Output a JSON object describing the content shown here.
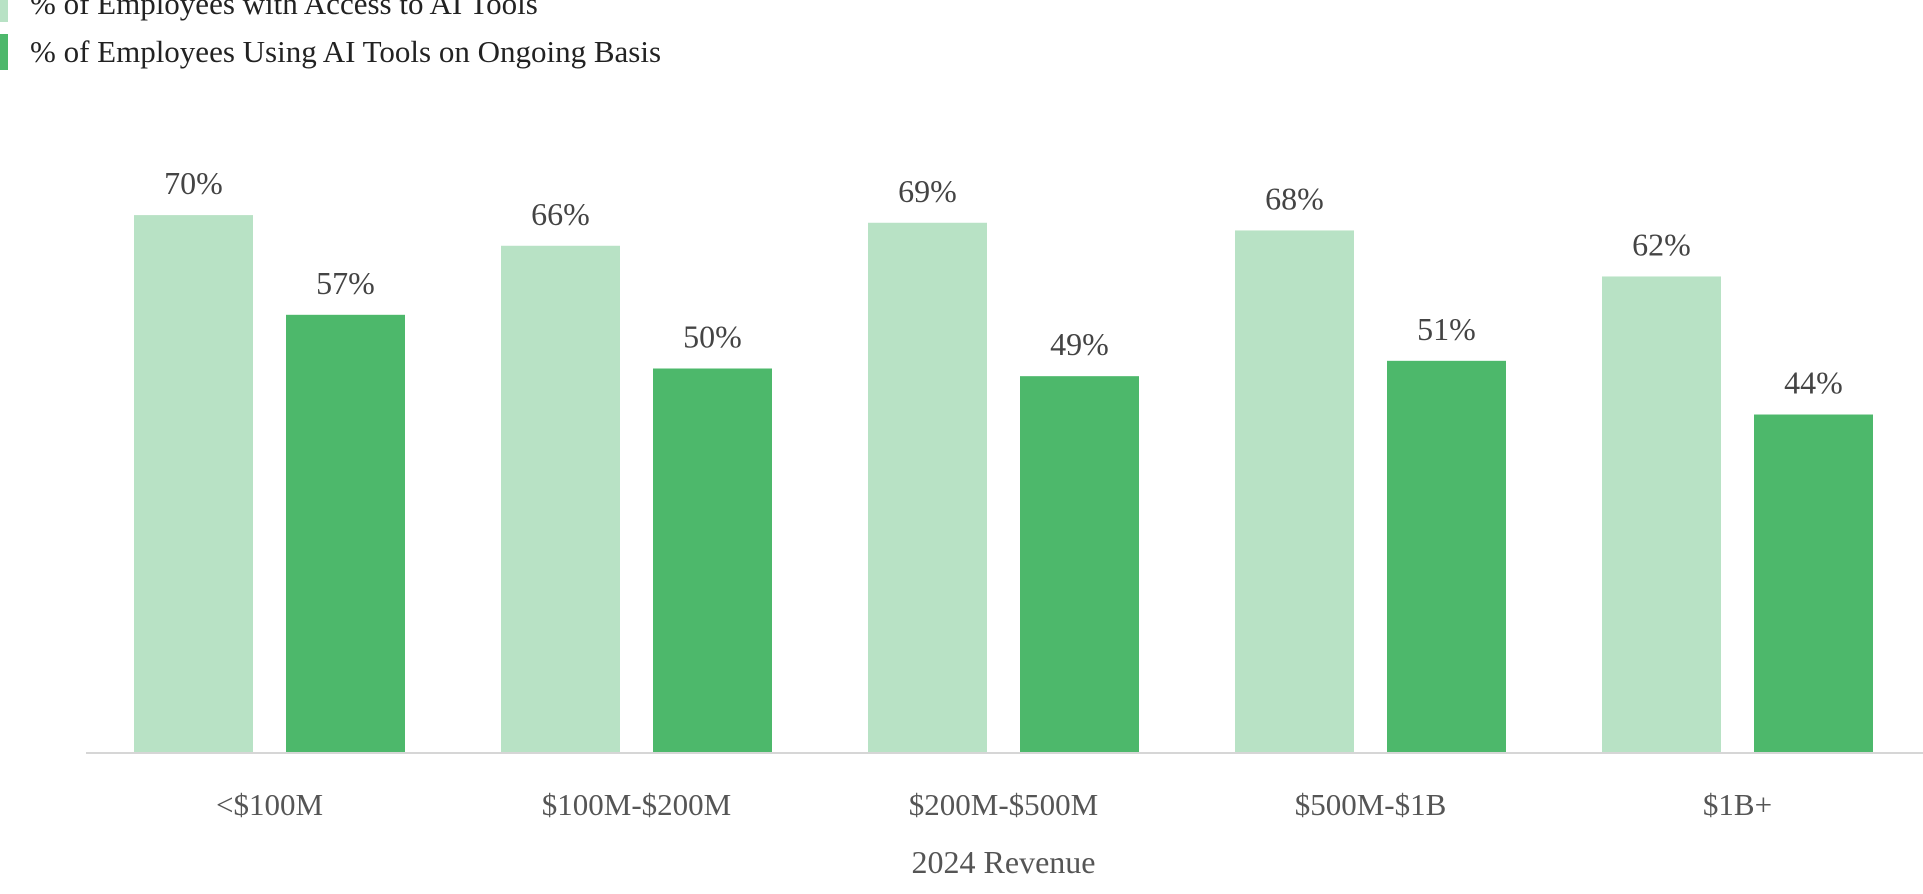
{
  "legend": [
    {
      "label": "% of Employees with Access to AI Tools",
      "color": "#b8e2c5"
    },
    {
      "label": "% of Employees Using AI Tools on Ongoing Basis",
      "color": "#4db86b"
    }
  ],
  "chart_data": {
    "type": "bar",
    "categories": [
      "<$100M",
      "$100M-$200M",
      "$200M-$500M",
      "$500M-$1B",
      "$1B+"
    ],
    "series": [
      {
        "name": "% of Employees with Access to AI Tools",
        "values": [
          70,
          66,
          69,
          68,
          62
        ],
        "labels": [
          "70%",
          "66%",
          "69%",
          "68%",
          "62%"
        ],
        "color": "#b8e2c5"
      },
      {
        "name": "% of Employees Using AI Tools on Ongoing Basis",
        "values": [
          57,
          50,
          49,
          51,
          44
        ],
        "labels": [
          "57%",
          "50%",
          "49%",
          "51%",
          "44%"
        ],
        "color": "#4db86b"
      }
    ],
    "title": "",
    "xlabel": "2024 Revenue",
    "ylabel": "",
    "ylim": [
      0,
      100
    ],
    "grid": false,
    "legend_position": "top-left"
  }
}
